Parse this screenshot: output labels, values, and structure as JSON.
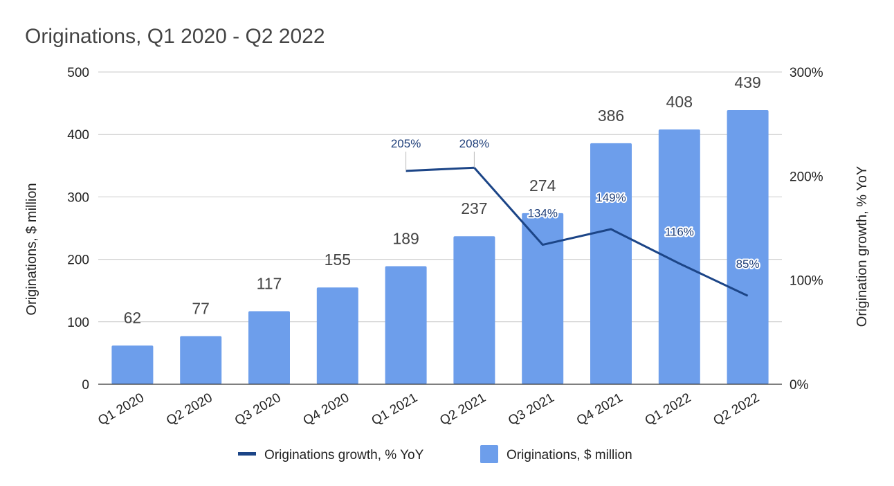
{
  "chart_data": {
    "type": "bar",
    "title": "Originations, Q1 2020 - Q2 2022",
    "categories": [
      "Q1 2020",
      "Q2 2020",
      "Q3 2020",
      "Q4 2020",
      "Q1 2021",
      "Q2 2021",
      "Q3 2021",
      "Q4 2021",
      "Q1 2022",
      "Q2 2022"
    ],
    "series": [
      {
        "name": "Originations, $ million",
        "type": "bar",
        "axis": "left",
        "color": "#6d9eeb",
        "values": [
          62,
          77,
          117,
          155,
          189,
          237,
          274,
          386,
          408,
          439
        ],
        "labels": [
          "62",
          "77",
          "117",
          "155",
          "189",
          "237",
          "274",
          "386",
          "408",
          "439"
        ]
      },
      {
        "name": "Originations growth, % YoY",
        "type": "line",
        "axis": "right",
        "color": "#1c4587",
        "values": [
          null,
          null,
          null,
          null,
          205,
          208,
          134,
          149,
          116,
          85
        ],
        "labels": [
          null,
          null,
          null,
          null,
          "205%",
          "208%",
          "134%",
          "149%",
          "116%",
          "85%"
        ]
      }
    ],
    "ylabel": "Originations, $ million",
    "ylim": [
      0,
      500
    ],
    "yticks": [
      0,
      100,
      200,
      300,
      400,
      500
    ],
    "ytick_labels": [
      "0",
      "100",
      "200",
      "300",
      "400",
      "500"
    ],
    "y2label": "Origination growth, % YoY",
    "y2lim": [
      0,
      300
    ],
    "y2ticks": [
      0,
      100,
      200,
      300
    ],
    "y2tick_labels": [
      "0%",
      "100%",
      "200%",
      "300%"
    ],
    "grid": true,
    "legend": "bottom",
    "legend_order": [
      "Originations growth, % YoY",
      "Originations, $ million"
    ]
  }
}
